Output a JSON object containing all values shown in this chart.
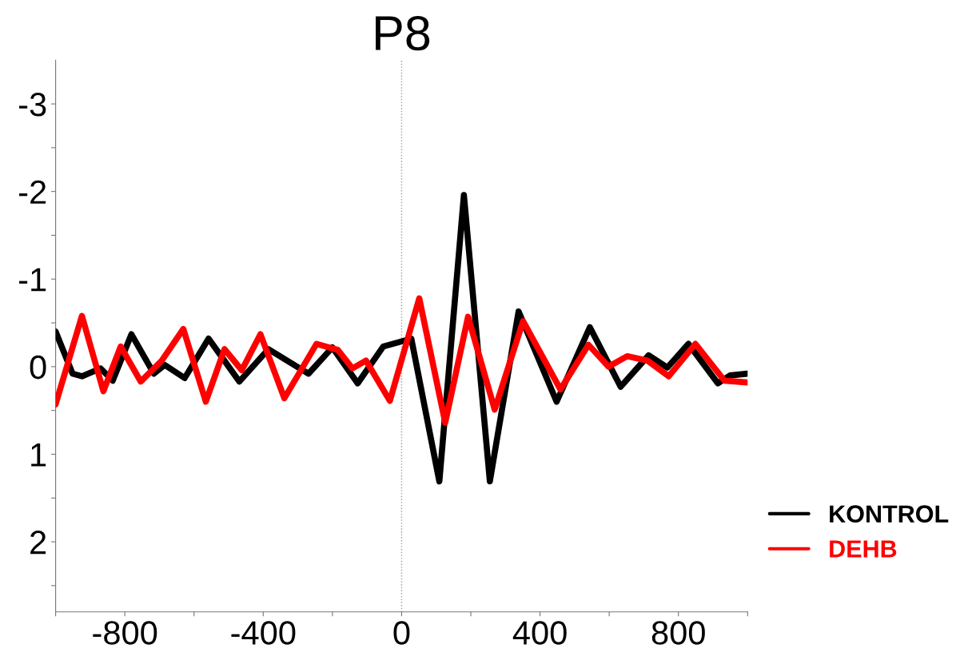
{
  "chart_data": {
    "type": "line",
    "title": "P8",
    "xlim": [
      -1000,
      1000
    ],
    "xticks": [
      {
        "value": -1000,
        "label": null
      },
      -800,
      {
        "value": -600,
        "label": null
      },
      -400,
      {
        "value": -200,
        "label": null
      },
      0,
      {
        "value": 200,
        "label": null
      },
      400,
      {
        "value": 600,
        "label": null
      },
      800,
      {
        "value": 1000,
        "label": null
      }
    ],
    "ylim": [
      2.8,
      -3.5
    ],
    "yticks": [
      -3,
      {
        "value": -2.5,
        "label": null
      },
      -2,
      {
        "value": -1.5,
        "label": null
      },
      -1,
      {
        "value": -0.5,
        "label": null
      },
      0,
      {
        "value": 0.5,
        "label": null
      },
      1,
      {
        "value": 1.5,
        "label": null
      },
      2,
      {
        "value": 2.5,
        "label": null
      }
    ],
    "grid": false,
    "legend": "bottom right",
    "marker": "none",
    "line_style": "solid",
    "ref_lines": [
      {
        "axis": "x",
        "value": 0,
        "color": "#999999",
        "line_style": "dotted"
      }
    ],
    "series": [
      {
        "name": "KONTROL",
        "color": "#000000",
        "x": [
          -1000,
          -951,
          -924,
          -870,
          -835,
          -781,
          -716,
          -685,
          -627,
          -558,
          -469,
          -385,
          -269,
          -200,
          -127,
          -53,
          -7,
          28,
          109,
          180,
          255,
          338,
          448,
          544,
          633,
          714,
          768,
          829,
          914,
          949,
          999
        ],
        "values": [
          -0.4,
          0.08,
          0.11,
          0.02,
          0.16,
          -0.37,
          0.08,
          -0.02,
          0.13,
          -0.32,
          0.17,
          -0.2,
          0.08,
          -0.22,
          0.19,
          -0.23,
          -0.28,
          -0.32,
          1.31,
          -1.96,
          1.31,
          -0.63,
          0.4,
          -0.45,
          0.23,
          -0.13,
          0.01,
          -0.26,
          0.19,
          0.1,
          0.08
        ]
      },
      {
        "name": "DEHB",
        "color": "#ff0000",
        "x": [
          -1000,
          -924,
          -862,
          -812,
          -754,
          -693,
          -631,
          -566,
          -512,
          -462,
          -408,
          -339,
          -246,
          -184,
          -142,
          -103,
          -34,
          51,
          126,
          192,
          269,
          351,
          459,
          540,
          598,
          652,
          710,
          772,
          849,
          933,
          999
        ],
        "values": [
          0.43,
          -0.58,
          0.28,
          -0.23,
          0.17,
          -0.07,
          -0.43,
          0.4,
          -0.2,
          0.04,
          -0.37,
          0.36,
          -0.26,
          -0.19,
          0.02,
          -0.07,
          0.39,
          -0.78,
          0.64,
          -0.57,
          0.49,
          -0.52,
          0.26,
          -0.25,
          0.0,
          -0.12,
          -0.07,
          0.11,
          -0.26,
          0.16,
          0.18
        ]
      }
    ]
  }
}
